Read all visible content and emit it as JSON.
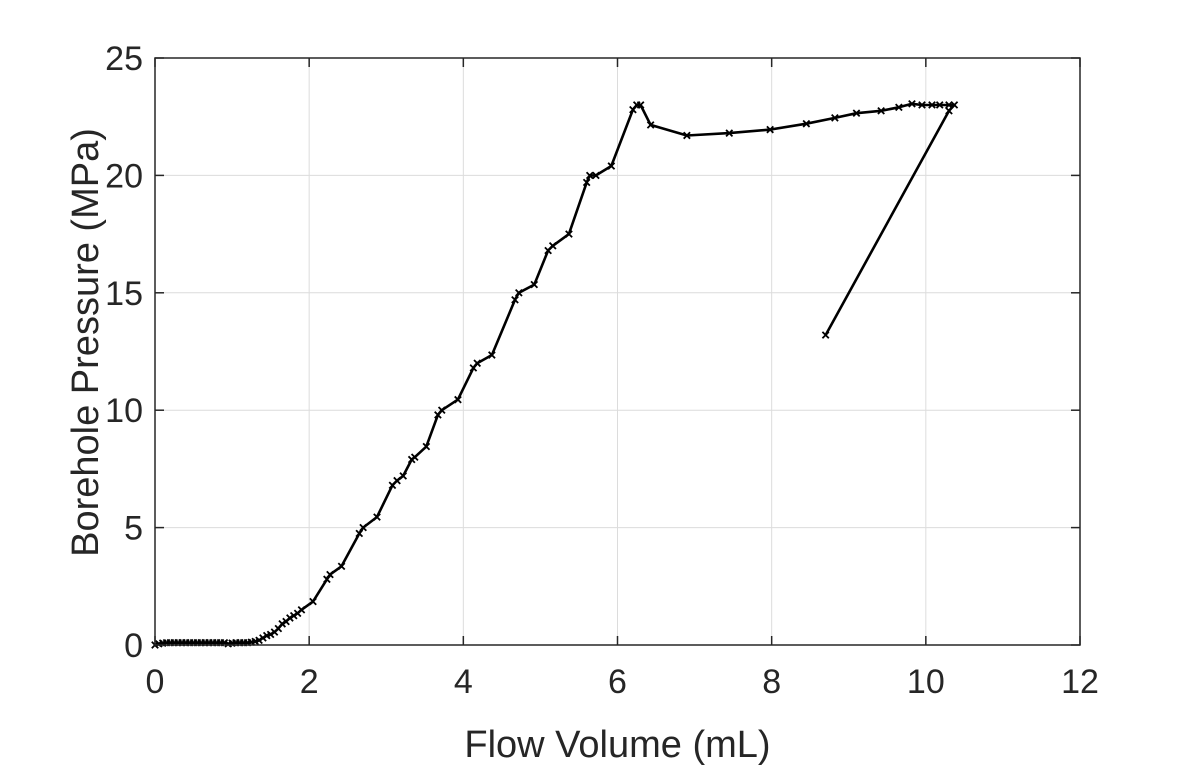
{
  "chart_data": {
    "type": "line",
    "title": "",
    "xlabel": "Flow Volume (mL)",
    "ylabel": "Borehole Pressure (MPa)",
    "xlim": [
      0,
      12
    ],
    "ylim": [
      0,
      25
    ],
    "xticks": [
      0,
      2,
      4,
      6,
      8,
      10,
      12
    ],
    "yticks": [
      0,
      5,
      10,
      15,
      20,
      25
    ],
    "xtick_labels": [
      "0",
      "2",
      "4",
      "6",
      "8",
      "10",
      "12"
    ],
    "ytick_labels": [
      "0",
      "5",
      "10",
      "15",
      "20",
      "25"
    ],
    "grid": true,
    "marker": "x",
    "line_color": "#000000",
    "series": [
      {
        "x": [
          0.0,
          0.05,
          0.1,
          0.15,
          0.2,
          0.25,
          0.3,
          0.35,
          0.4,
          0.45,
          0.5,
          0.55,
          0.6,
          0.65,
          0.7,
          0.75,
          0.8,
          0.85,
          0.9,
          0.95,
          1.0,
          1.05,
          1.1,
          1.15,
          1.2,
          1.25,
          1.3,
          1.35,
          1.4,
          1.45,
          1.5,
          1.55,
          1.6,
          1.65,
          1.7,
          1.75,
          1.8,
          1.85,
          1.9,
          2.05,
          2.23,
          2.27,
          2.42,
          2.65,
          2.7,
          2.88,
          3.08,
          3.14,
          3.22,
          3.33,
          3.37,
          3.52,
          3.67,
          3.72,
          3.93,
          4.13,
          4.18,
          4.37,
          4.67,
          4.72,
          4.92,
          5.1,
          5.16,
          5.37,
          5.6,
          5.64,
          5.72,
          5.92,
          6.2,
          6.25,
          6.3,
          6.43,
          6.9,
          7.45,
          7.98,
          8.45,
          8.82,
          9.1,
          9.42,
          9.65,
          9.82,
          9.95,
          10.08,
          10.18,
          10.3,
          10.37,
          10.3,
          8.7
        ],
        "y": [
          0.0,
          0.05,
          0.08,
          0.1,
          0.1,
          0.1,
          0.1,
          0.1,
          0.1,
          0.1,
          0.1,
          0.1,
          0.1,
          0.1,
          0.1,
          0.1,
          0.1,
          0.1,
          0.1,
          0.05,
          0.08,
          0.1,
          0.1,
          0.1,
          0.1,
          0.12,
          0.15,
          0.2,
          0.3,
          0.4,
          0.45,
          0.55,
          0.7,
          0.9,
          1.0,
          1.15,
          1.25,
          1.35,
          1.5,
          1.85,
          2.8,
          3.0,
          3.35,
          4.75,
          5.0,
          5.45,
          6.8,
          7.0,
          7.2,
          7.9,
          8.0,
          8.45,
          9.8,
          10.0,
          10.45,
          11.8,
          12.0,
          12.35,
          14.7,
          15.0,
          15.35,
          16.8,
          17.0,
          17.5,
          19.7,
          20.0,
          20.0,
          20.4,
          22.8,
          23.0,
          23.0,
          22.15,
          21.7,
          21.8,
          21.95,
          22.2,
          22.45,
          22.65,
          22.75,
          22.9,
          23.05,
          23.0,
          23.0,
          23.0,
          23.0,
          23.0,
          22.75,
          13.2
        ]
      }
    ]
  }
}
